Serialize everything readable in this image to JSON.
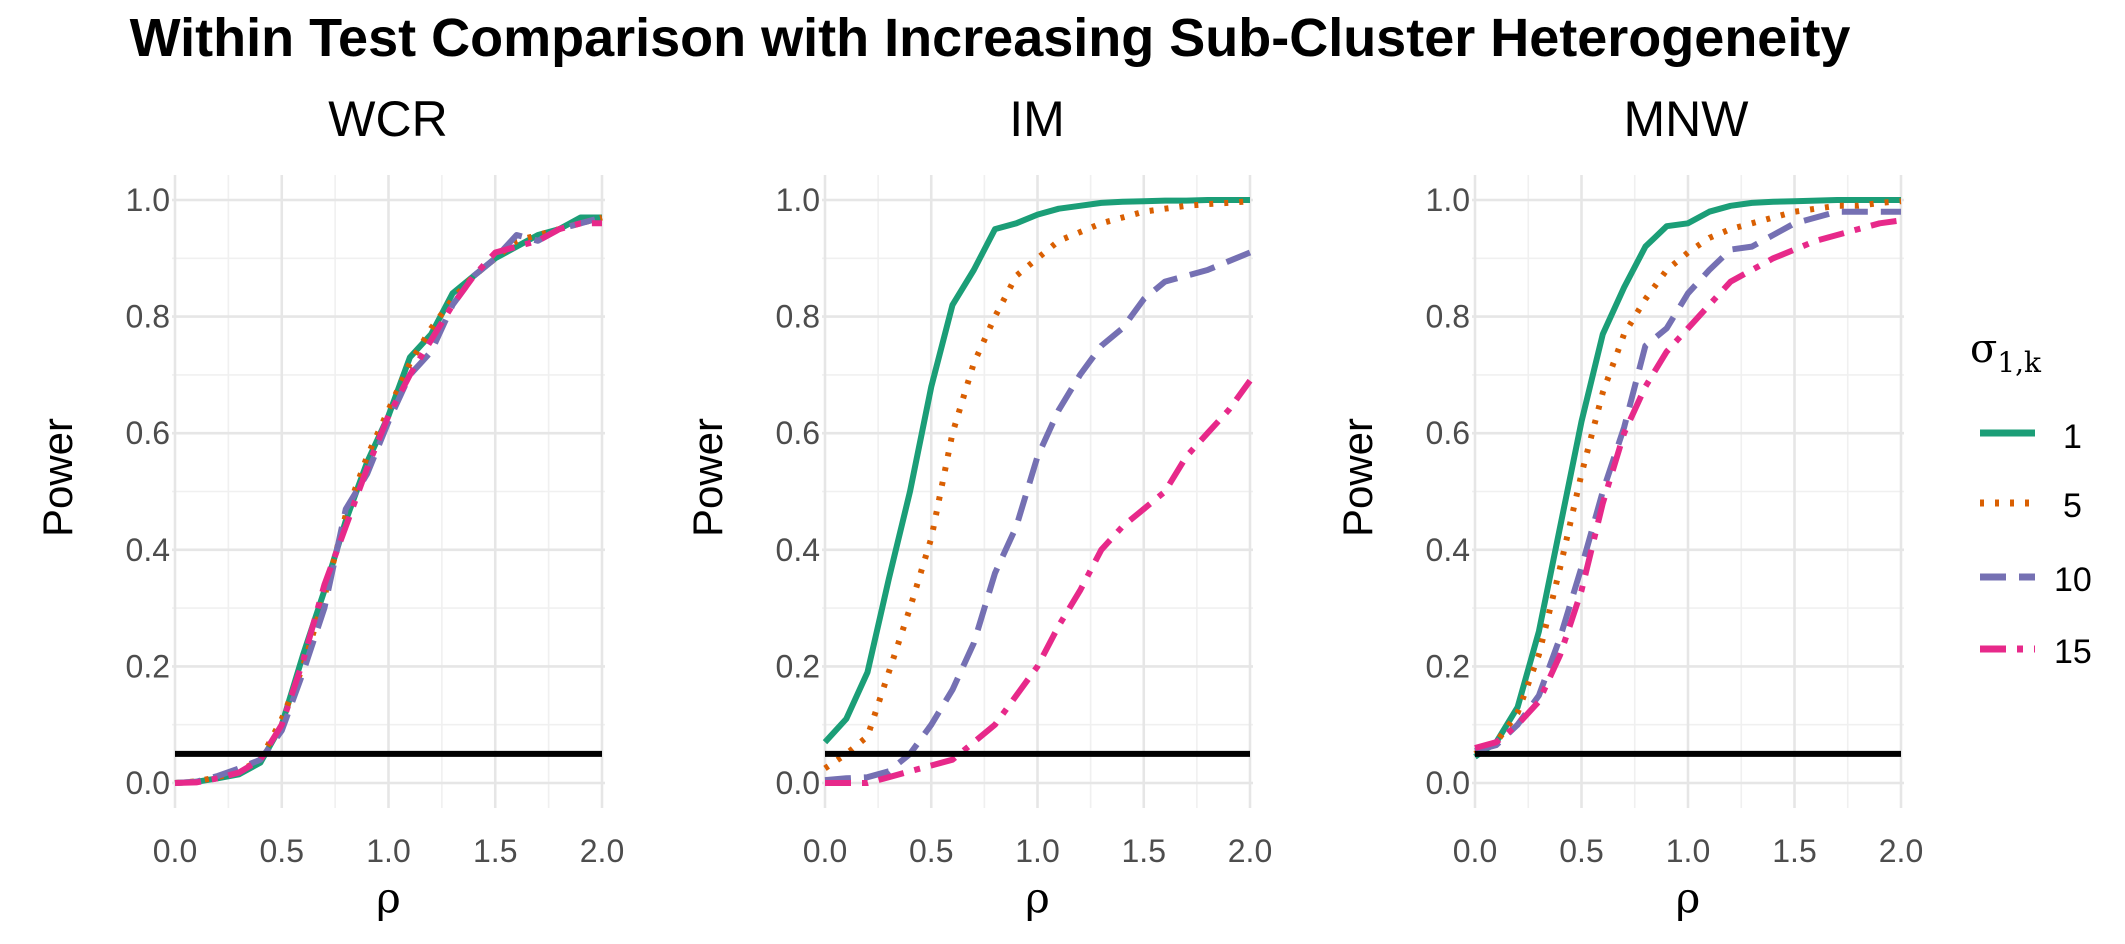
{
  "figure_title": "Within Test Comparison with Increasing Sub-Cluster Heterogeneity",
  "legend": {
    "title_symbol": "σ",
    "title_subscript": "1,k",
    "entries": [
      "1",
      "5",
      "10",
      "15"
    ]
  },
  "colors": {
    "series_1": "#1b9e77",
    "series_5": "#d95f02",
    "series_10": "#7570b3",
    "series_15": "#e7298a",
    "reference_line": "#000000"
  },
  "chart_data": [
    {
      "type": "line",
      "title": "WCR",
      "xlabel": "ρ",
      "ylabel": "Power",
      "xlim": [
        0,
        2
      ],
      "ylim": [
        0,
        1
      ],
      "x_ticks": [
        "0.0",
        "0.5",
        "1.0",
        "1.5",
        "2.0"
      ],
      "y_ticks": [
        "0.0",
        "0.2",
        "0.4",
        "0.6",
        "0.8",
        "1.0"
      ],
      "reference_line_y": 0.05,
      "x": [
        0,
        0.1,
        0.2,
        0.3,
        0.4,
        0.5,
        0.6,
        0.7,
        0.8,
        0.9,
        1.0,
        1.1,
        1.2,
        1.3,
        1.4,
        1.5,
        1.6,
        1.7,
        1.8,
        1.9,
        2.0
      ],
      "series": [
        {
          "name": "1",
          "values": [
            0.0,
            0.002,
            0.008,
            0.015,
            0.035,
            0.1,
            0.22,
            0.33,
            0.45,
            0.55,
            0.63,
            0.73,
            0.77,
            0.84,
            0.87,
            0.9,
            0.92,
            0.94,
            0.95,
            0.97,
            0.97
          ]
        },
        {
          "name": "5",
          "values": [
            0.0,
            0.003,
            0.01,
            0.02,
            0.04,
            0.11,
            0.2,
            0.32,
            0.46,
            0.56,
            0.64,
            0.72,
            0.78,
            0.83,
            0.87,
            0.9,
            0.93,
            0.94,
            0.95,
            0.96,
            0.97
          ]
        },
        {
          "name": "10",
          "values": [
            0.0,
            0.002,
            0.012,
            0.025,
            0.04,
            0.09,
            0.19,
            0.3,
            0.47,
            0.53,
            0.62,
            0.7,
            0.74,
            0.82,
            0.87,
            0.9,
            0.94,
            0.93,
            0.95,
            0.96,
            0.97
          ]
        },
        {
          "name": "15",
          "values": [
            0.0,
            0.001,
            0.008,
            0.018,
            0.04,
            0.1,
            0.21,
            0.34,
            0.44,
            0.54,
            0.63,
            0.7,
            0.76,
            0.82,
            0.87,
            0.91,
            0.92,
            0.93,
            0.95,
            0.96,
            0.96
          ]
        }
      ]
    },
    {
      "type": "line",
      "title": "IM",
      "xlabel": "ρ",
      "ylabel": "Power",
      "xlim": [
        0,
        2
      ],
      "ylim": [
        0,
        1
      ],
      "x_ticks": [
        "0.0",
        "0.5",
        "1.0",
        "1.5",
        "2.0"
      ],
      "y_ticks": [
        "0.0",
        "0.2",
        "0.4",
        "0.6",
        "0.8",
        "1.0"
      ],
      "reference_line_y": 0.05,
      "x": [
        0,
        0.1,
        0.2,
        0.3,
        0.4,
        0.5,
        0.6,
        0.7,
        0.8,
        0.9,
        1.0,
        1.1,
        1.2,
        1.3,
        1.4,
        1.5,
        1.6,
        1.7,
        1.8,
        1.9,
        2.0
      ],
      "series": [
        {
          "name": "1",
          "values": [
            0.07,
            0.11,
            0.19,
            0.35,
            0.5,
            0.68,
            0.82,
            0.88,
            0.95,
            0.96,
            0.975,
            0.985,
            0.99,
            0.995,
            0.997,
            0.998,
            0.999,
            0.999,
            1.0,
            1.0,
            1.0
          ]
        },
        {
          "name": "5",
          "values": [
            0.025,
            0.05,
            0.08,
            0.19,
            0.3,
            0.42,
            0.6,
            0.72,
            0.8,
            0.87,
            0.9,
            0.93,
            0.945,
            0.96,
            0.97,
            0.98,
            0.985,
            0.99,
            0.993,
            0.995,
            0.998
          ]
        },
        {
          "name": "10",
          "values": [
            0.005,
            0.008,
            0.01,
            0.02,
            0.05,
            0.1,
            0.16,
            0.24,
            0.36,
            0.44,
            0.56,
            0.64,
            0.7,
            0.75,
            0.78,
            0.83,
            0.86,
            0.87,
            0.88,
            0.895,
            0.91
          ]
        },
        {
          "name": "15",
          "values": [
            0.0,
            0.0,
            0.0,
            0.01,
            0.02,
            0.03,
            0.04,
            0.07,
            0.1,
            0.15,
            0.2,
            0.27,
            0.33,
            0.4,
            0.44,
            0.47,
            0.5,
            0.56,
            0.6,
            0.64,
            0.69
          ]
        }
      ]
    },
    {
      "type": "line",
      "title": "MNW",
      "xlabel": "ρ",
      "ylabel": "Power",
      "xlim": [
        0,
        2
      ],
      "ylim": [
        0,
        1
      ],
      "x_ticks": [
        "0.0",
        "0.5",
        "1.0",
        "1.5",
        "2.0"
      ],
      "y_ticks": [
        "0.0",
        "0.2",
        "0.4",
        "0.6",
        "0.8",
        "1.0"
      ],
      "reference_line_y": 0.05,
      "x": [
        0,
        0.1,
        0.2,
        0.3,
        0.4,
        0.5,
        0.6,
        0.7,
        0.8,
        0.9,
        1.0,
        1.1,
        1.2,
        1.3,
        1.4,
        1.5,
        1.6,
        1.7,
        1.8,
        1.9,
        2.0
      ],
      "series": [
        {
          "name": "1",
          "values": [
            0.045,
            0.07,
            0.13,
            0.26,
            0.44,
            0.62,
            0.77,
            0.85,
            0.92,
            0.955,
            0.96,
            0.98,
            0.99,
            0.995,
            0.997,
            0.998,
            0.999,
            1.0,
            1.0,
            1.0,
            1.0
          ]
        },
        {
          "name": "5",
          "values": [
            0.05,
            0.07,
            0.12,
            0.22,
            0.37,
            0.53,
            0.67,
            0.77,
            0.83,
            0.88,
            0.91,
            0.935,
            0.95,
            0.96,
            0.97,
            0.98,
            0.985,
            0.99,
            0.99,
            0.995,
            0.998
          ]
        },
        {
          "name": "10",
          "values": [
            0.055,
            0.065,
            0.1,
            0.15,
            0.25,
            0.37,
            0.5,
            0.61,
            0.75,
            0.78,
            0.84,
            0.88,
            0.915,
            0.92,
            0.94,
            0.96,
            0.97,
            0.98,
            0.98,
            0.98,
            0.98
          ]
        },
        {
          "name": "15",
          "values": [
            0.06,
            0.07,
            0.1,
            0.14,
            0.22,
            0.33,
            0.48,
            0.6,
            0.68,
            0.74,
            0.78,
            0.82,
            0.86,
            0.88,
            0.9,
            0.915,
            0.93,
            0.94,
            0.95,
            0.96,
            0.965
          ]
        }
      ]
    }
  ]
}
